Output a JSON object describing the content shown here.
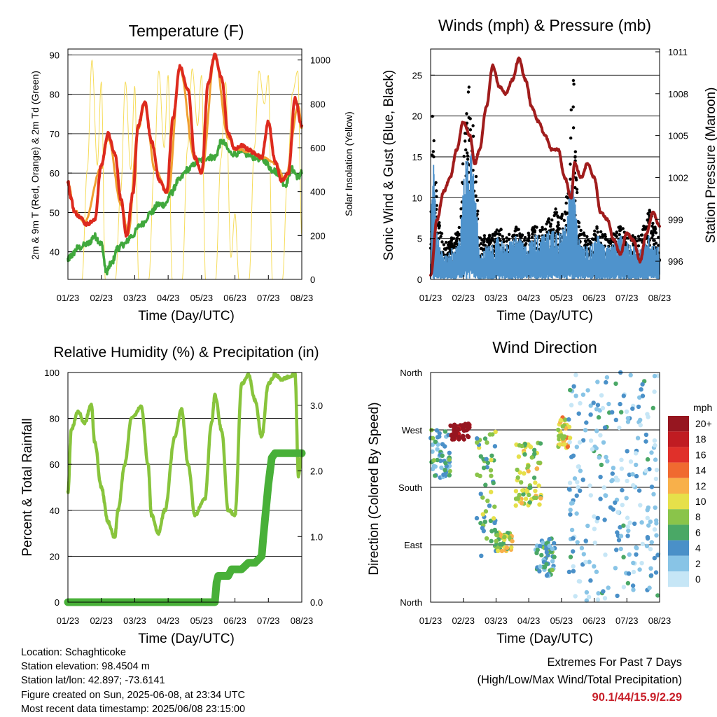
{
  "x_ticks": [
    "01/23",
    "02/23",
    "03/23",
    "04/23",
    "05/23",
    "06/23",
    "07/23",
    "08/23"
  ],
  "x_axis_label": "Time (Day/UTC)",
  "panels": {
    "temperature": {
      "title": "Temperature (F)",
      "ylabel_left": "2m & 9m T (Red, Orange) & 2m Td (Green)",
      "ylabel_right": "Solar Insolation (Yellow)",
      "left_ticks": [
        "40",
        "50",
        "60",
        "70",
        "80",
        "90"
      ],
      "right_ticks": [
        "0",
        "200",
        "400",
        "600",
        "800",
        "1000"
      ]
    },
    "wind": {
      "title": "Winds (mph) & Pressure (mb)",
      "ylabel_left": "Sonic Wind & Gust (Blue, Black)",
      "ylabel_right": "Station Pressure (Maroon)",
      "left_ticks": [
        "0",
        "5",
        "10",
        "15",
        "20",
        "25"
      ],
      "right_ticks": [
        "996",
        "999",
        "1002",
        "1005",
        "1008",
        "1011"
      ]
    },
    "humidity": {
      "title": "Relative Humidity (%) & Precipitation (in)",
      "ylabel_left": "Percent & Total Rainfall",
      "left_ticks": [
        "0",
        "20",
        "40",
        "60",
        "80",
        "100"
      ],
      "right_ticks": [
        "0.0",
        "1.0",
        "2.0",
        "3.0"
      ]
    },
    "direction": {
      "title": "Wind Direction",
      "ylabel_left": "Direction (Colored By Speed)",
      "left_ticks": [
        "North",
        "East",
        "South",
        "West",
        "North"
      ],
      "legend_title": "mph",
      "legend_labels": [
        "0",
        "2",
        "4",
        "6",
        "8",
        "10",
        "12",
        "14",
        "16",
        "18",
        "20+"
      ],
      "legend_colors": [
        "#c6e6f6",
        "#88c4e6",
        "#4a90c8",
        "#4aa866",
        "#8ac44a",
        "#e6e04a",
        "#f8b04a",
        "#f06a30",
        "#e0302a",
        "#c01c22",
        "#961620"
      ]
    }
  },
  "chart_data": [
    {
      "type": "line",
      "title": "Temperature (F)",
      "xlabel": "Time (Day/UTC)",
      "ylabel": "2m & 9m T (Red, Orange) & 2m Td (Green)",
      "y2label": "Solar Insolation (Yellow)",
      "x_categories": [
        "01/23",
        "02/23",
        "03/23",
        "04/23",
        "05/23",
        "06/23",
        "07/23",
        "08/23"
      ],
      "ylim": [
        33,
        91.5
      ],
      "y2lim": [
        0,
        1050
      ],
      "grid": true,
      "series": [
        {
          "color": "#dd2a1e",
          "x": [
            0,
            0.08,
            0.2,
            0.35,
            0.55,
            0.8,
            1.0,
            1.2,
            1.4,
            1.6,
            1.75,
            1.95,
            2.1,
            2.3,
            2.5,
            2.75,
            2.95,
            3.15,
            3.35,
            3.6,
            3.8,
            4.0,
            4.2,
            4.4,
            4.6,
            4.8,
            5.0,
            5.2,
            5.4,
            5.6,
            5.8,
            6.0,
            6.2,
            6.4,
            6.6,
            6.8,
            7.0
          ],
          "y": [
            58,
            54,
            50,
            49,
            47,
            48,
            62,
            70,
            65,
            53,
            44,
            55,
            72,
            78,
            68,
            58,
            55,
            74,
            87,
            81,
            64,
            60,
            83,
            90,
            84,
            70,
            66,
            67,
            66,
            65,
            64,
            73,
            63,
            58,
            60,
            79,
            72
          ]
        },
        {
          "color": "#f0a030",
          "x": [
            0,
            0.2,
            0.5,
            1.0,
            1.2,
            1.6,
            1.8,
            2.1,
            2.3,
            2.6,
            3.0,
            3.35,
            3.8,
            4.0,
            4.4,
            4.8,
            5.0,
            5.4,
            5.8,
            6.2,
            6.5,
            6.9,
            7.0
          ],
          "y": [
            57.5,
            50.5,
            47.5,
            61.5,
            69,
            52,
            44.5,
            71,
            77.5,
            61,
            55,
            86.5,
            63.5,
            60,
            89.5,
            69,
            66,
            65.5,
            64,
            62.5,
            58.5,
            77,
            71.5
          ]
        },
        {
          "color": "#40a83c",
          "x": [
            0,
            0.1,
            0.3,
            0.6,
            0.8,
            1.0,
            1.15,
            1.3,
            1.5,
            1.7,
            1.9,
            2.2,
            2.5,
            2.7,
            2.9,
            3.1,
            3.3,
            3.6,
            3.9,
            4.2,
            4.4,
            4.6,
            4.9,
            5.2,
            5.6,
            5.9,
            6.1,
            6.3,
            6.5,
            6.7,
            6.9,
            7.0
          ],
          "y": [
            38,
            39,
            41,
            42,
            44,
            42,
            35,
            37,
            41,
            42,
            44,
            47,
            50,
            52,
            52,
            55,
            58,
            61,
            63,
            64,
            64,
            68,
            65,
            65,
            64,
            63,
            61,
            60,
            57,
            61,
            59,
            60
          ]
        },
        {
          "color": "#f6dc5a",
          "x": [
            0.42,
            0.58,
            0.72,
            0.88,
            1.0,
            1.12,
            1.42,
            1.58,
            1.72,
            1.88,
            2.0,
            2.12,
            2.42,
            2.58,
            2.72,
            2.88,
            3.0,
            3.12,
            3.42,
            3.58,
            3.72,
            3.88,
            4.0,
            4.12,
            4.42,
            4.58,
            4.72,
            4.88,
            5.0,
            5.12,
            5.42,
            5.58,
            5.72,
            5.88,
            6.0,
            6.12,
            6.42,
            6.58,
            6.72,
            6.88,
            7.0
          ],
          "y": [
            0,
            500,
            1000,
            520,
            900,
            0,
            0,
            400,
            900,
            500,
            880,
            0,
            0,
            500,
            950,
            600,
            930,
            0,
            0,
            600,
            960,
            700,
            930,
            0,
            0,
            550,
            900,
            100,
            300,
            0,
            0,
            600,
            950,
            800,
            930,
            0,
            0,
            500,
            850,
            950,
            200
          ]
        }
      ]
    },
    {
      "type": "line",
      "title": "Winds (mph) & Pressure (mb)",
      "xlabel": "Time (Day/UTC)",
      "ylabel": "Sonic Wind & Gust (Blue, Black)",
      "y2label": "Station Pressure (Maroon)",
      "x_categories": [
        "01/23",
        "02/23",
        "03/23",
        "04/23",
        "05/23",
        "06/23",
        "07/23",
        "08/23"
      ],
      "ylim": [
        0,
        28.2
      ],
      "y2lim": [
        994.7,
        1011.2
      ],
      "grid": true,
      "series": [
        {
          "color": "#4f93cc",
          "x": [
            0,
            0.05,
            0.2,
            0.4,
            0.7,
            0.9,
            1.1,
            1.3,
            1.5,
            1.7,
            1.9,
            2.1,
            2.3,
            2.6,
            2.9,
            3.2,
            3.5,
            3.8,
            4.0,
            4.2,
            4.35,
            4.5,
            4.7,
            4.9,
            5.1,
            5.3,
            5.5,
            5.8,
            6.1,
            6.4,
            6.7,
            6.9,
            7.0
          ],
          "y": [
            3,
            13,
            4,
            2,
            3,
            4,
            12,
            11,
            2,
            3,
            3,
            4,
            3,
            4,
            3,
            4,
            4,
            5,
            4,
            7,
            9,
            4,
            3,
            3,
            4,
            3,
            3,
            4,
            3,
            3,
            4,
            3,
            3
          ]
        },
        {
          "color": "#000000",
          "x": [
            0,
            0.05,
            0.2,
            0.4,
            0.7,
            0.9,
            1.05,
            1.2,
            1.3,
            1.5,
            1.7,
            1.9,
            2.1,
            2.3,
            2.6,
            2.9,
            3.2,
            3.5,
            3.8,
            4.0,
            4.2,
            4.35,
            4.5,
            4.7,
            4.9,
            5.1,
            5.3,
            5.5,
            5.8,
            6.1,
            6.4,
            6.7,
            6.9,
            7.0
          ],
          "y": [
            5,
            23,
            8,
            4,
            5,
            6,
            19,
            22,
            17,
            5,
            5,
            5,
            6,
            5,
            6,
            5,
            6,
            6,
            8,
            7,
            10,
            26,
            7,
            5,
            5,
            6,
            5,
            5,
            6,
            5,
            5,
            8,
            6,
            5
          ]
        },
        {
          "color": "#a01c1c",
          "x": [
            0,
            0.2,
            0.4,
            0.6,
            0.8,
            1.0,
            1.2,
            1.35,
            1.5,
            1.7,
            1.9,
            2.1,
            2.3,
            2.5,
            2.7,
            2.9,
            3.1,
            3.3,
            3.5,
            3.7,
            3.9,
            4.1,
            4.3,
            4.4,
            4.6,
            4.8,
            5.0,
            5.2,
            5.4,
            5.6,
            5.8,
            6.0,
            6.2,
            6.4,
            6.6,
            6.8,
            7.0
          ],
          "y": [
            995,
            999,
            1001,
            1002,
            1004,
            1006,
            1005,
            1003,
            1004,
            1007,
            1010,
            1008.5,
            1008,
            1009,
            1010.5,
            1009,
            1007,
            1006,
            1005,
            1004,
            1004,
            1002,
            1000.5,
            1003,
            1002,
            1003,
            1002,
            999.5,
            999,
            997.5,
            996.5,
            998,
            997.5,
            996,
            998,
            999.5,
            998.5
          ]
        }
      ]
    },
    {
      "type": "line",
      "title": "Relative Humidity (%) & Precipitation (in)",
      "xlabel": "Time (Day/UTC)",
      "ylabel": "Percent & Total Rainfall",
      "x_categories": [
        "01/23",
        "02/23",
        "03/23",
        "04/23",
        "05/23",
        "06/23",
        "07/23",
        "08/23"
      ],
      "ylim": [
        0,
        100
      ],
      "y2lim": [
        0,
        3.5
      ],
      "grid": true,
      "series": [
        {
          "color": "#88c43c",
          "x": [
            0,
            0.1,
            0.3,
            0.5,
            0.7,
            0.8,
            1.0,
            1.2,
            1.4,
            1.5,
            1.7,
            1.9,
            2.2,
            2.4,
            2.5,
            2.7,
            2.9,
            3.2,
            3.4,
            3.6,
            3.8,
            4.1,
            4.3,
            4.4,
            4.6,
            4.8,
            5.0,
            5.2,
            5.4,
            5.6,
            5.8,
            6.0,
            6.2,
            6.4,
            6.6,
            6.8,
            6.9,
            7.0
          ],
          "y": [
            48,
            75,
            83,
            78,
            86,
            70,
            50,
            35,
            28,
            40,
            60,
            80,
            85,
            60,
            38,
            30,
            40,
            72,
            84,
            60,
            38,
            45,
            78,
            90,
            75,
            40,
            38,
            95,
            99,
            88,
            72,
            95,
            99,
            97,
            98,
            99,
            55,
            65
          ]
        },
        {
          "color": "#48b038",
          "x": [
            0,
            4.4,
            4.45,
            4.5,
            4.8,
            4.9,
            5.2,
            5.4,
            5.6,
            5.8,
            5.85,
            6.0,
            6.1,
            6.2,
            7.0
          ],
          "y": [
            0,
            0,
            0.3,
            0.4,
            0.4,
            0.5,
            0.5,
            0.6,
            0.6,
            0.7,
            1.0,
            1.8,
            2.2,
            2.27,
            2.27
          ]
        }
      ]
    },
    {
      "type": "scatter",
      "title": "Wind Direction",
      "xlabel": "Time (Day/UTC)",
      "ylabel": "Direction (Colored By Speed)",
      "x_categories": [
        "01/23",
        "02/23",
        "03/23",
        "04/23",
        "05/23",
        "06/23",
        "07/23",
        "08/23"
      ],
      "y_categories": [
        "North",
        "East",
        "South",
        "West",
        "North"
      ],
      "ylim": [
        0,
        360
      ],
      "colorbar_label": "mph",
      "grid": true,
      "clusters": [
        {
          "x": [
            0.0,
            0.6
          ],
          "y": [
            195,
            270
          ],
          "speed": 2
        },
        {
          "x": [
            0.6,
            1.2
          ],
          "y": [
            255,
            280
          ],
          "speed": 10
        },
        {
          "x": [
            1.4,
            2.0
          ],
          "y": [
            70,
            270
          ],
          "speed": 3
        },
        {
          "x": [
            2.0,
            2.5
          ],
          "y": [
            80,
            110
          ],
          "speed": 4
        },
        {
          "x": [
            2.6,
            3.4
          ],
          "y": [
            150,
            250
          ],
          "speed": 4
        },
        {
          "x": [
            3.2,
            3.8
          ],
          "y": [
            40,
            100
          ],
          "speed": 2
        },
        {
          "x": [
            3.9,
            4.3
          ],
          "y": [
            240,
            290
          ],
          "speed": 5
        },
        {
          "x": [
            4.2,
            5.3
          ],
          "y": [
            0,
            360
          ],
          "speed": 1
        },
        {
          "x": [
            5.3,
            7.0
          ],
          "y": [
            0,
            360
          ],
          "speed": 1
        }
      ]
    }
  ],
  "info": {
    "location": "Location: Schaghticoke",
    "elevation": "Station elevation: 98.4504 m",
    "latlon": "Station lat/lon: 42.897; -73.6141",
    "created": "Figure created on Sun, 2025-06-08, at 23:34 UTC",
    "recent": "Most recent data timestamp: 2025/06/08 23:15:00"
  },
  "extremes": {
    "line1": "Extremes For Past 7 Days",
    "line2": "(High/Low/Max Wind/Total Precipitation)",
    "values": "90.1/44/15.9/2.29"
  }
}
